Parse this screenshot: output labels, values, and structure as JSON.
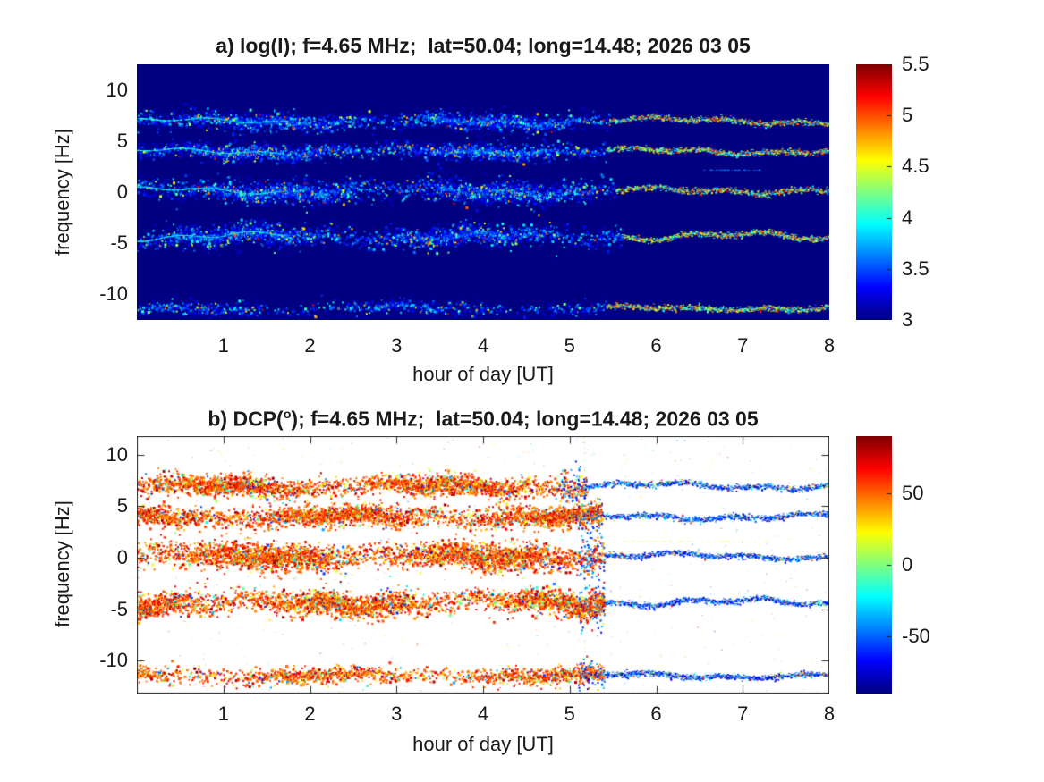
{
  "figure": {
    "background": "#ffffff",
    "text_color": "#1a1a1a",
    "colormap": "jet",
    "colormap_min_color": "#000080",
    "colormap_max_color": "#800000"
  },
  "chart_data": [
    {
      "type": "heatmap",
      "panel": "a",
      "title": "a) log(I); f=4.65 MHz;  lat=50.04; long=14.48; 2026 03 05",
      "xlabel": "hour of day [UT]",
      "ylabel": "frequency [Hz]",
      "xlim": [
        0,
        8
      ],
      "ylim": [
        -12.5,
        12.5
      ],
      "xticks": [
        1,
        2,
        3,
        4,
        5,
        6,
        7,
        8
      ],
      "yticks": [
        10,
        5,
        0,
        -5,
        -10
      ],
      "clim": [
        3,
        5.5
      ],
      "colorbar_ticks": [
        5.5,
        5,
        4.5,
        4,
        3.5,
        3
      ],
      "background_value": 3,
      "transition_hour": 5.45,
      "bands": [
        {
          "center_hz": 7.0,
          "sigma_hz": 0.45,
          "density": 2.0,
          "wave_amp": 0.3
        },
        {
          "center_hz": 4.05,
          "sigma_hz": 0.42,
          "density": 2.2,
          "wave_amp": 0.28
        },
        {
          "center_hz": 0.2,
          "sigma_hz": 0.6,
          "density": 2.6,
          "wave_amp": 0.32
        },
        {
          "center_hz": -4.3,
          "sigma_hz": 0.55,
          "density": 2.4,
          "wave_amp": 0.4
        },
        {
          "center_hz": -11.3,
          "sigma_hz": 0.35,
          "density": 0.9,
          "wave_amp": 0.22
        }
      ]
    },
    {
      "type": "heatmap",
      "panel": "b",
      "title": "b) DCP(o); f=4.65 MHz;  lat=50.04; long=14.48; 2026 03 05",
      "title_parts": {
        "pre": "b) DCP(",
        "sup": "o",
        "post": "); f=4.65 MHz;  lat=50.04; long=14.48; 2026 03 05"
      },
      "xlabel": "hour of day [UT]",
      "ylabel": "frequency [Hz]",
      "xlim": [
        0,
        8
      ],
      "ylim": [
        -13.2,
        11.8
      ],
      "xticks": [
        1,
        2,
        3,
        4,
        5,
        6,
        7,
        8
      ],
      "yticks": [
        10,
        5,
        0,
        -5,
        -10
      ],
      "clim": [
        -90,
        90
      ],
      "colorbar_ticks": [
        50,
        0,
        -50
      ],
      "background_value": null,
      "transition_hour": 5.25,
      "vertical_line_hour": 5.17,
      "bands": [
        {
          "center_hz": 7.0,
          "sigma_hz": 0.5,
          "density": 2.6,
          "wave_amp": 0.3
        },
        {
          "center_hz": 4.05,
          "sigma_hz": 0.5,
          "density": 2.8,
          "wave_amp": 0.28
        },
        {
          "center_hz": 0.2,
          "sigma_hz": 0.65,
          "density": 3.2,
          "wave_amp": 0.32
        },
        {
          "center_hz": -4.3,
          "sigma_hz": 0.6,
          "density": 3.0,
          "wave_amp": 0.4
        },
        {
          "center_hz": -11.4,
          "sigma_hz": 0.4,
          "density": 1.5,
          "wave_amp": 0.22
        }
      ]
    }
  ]
}
